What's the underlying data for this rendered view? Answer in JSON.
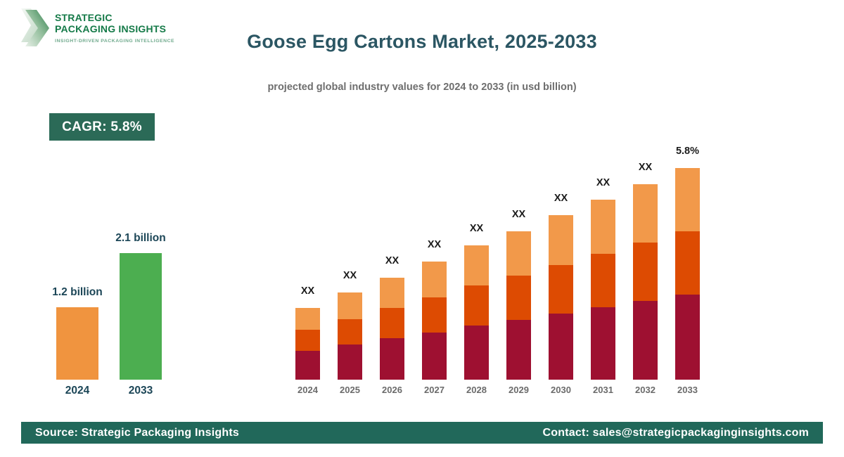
{
  "brand": {
    "name_line1": "STRATEGIC",
    "name_line2": "PACKAGING INSIGHTS",
    "tagline": "INSIGHT-DRIVEN PACKAGING INTELLIGENCE"
  },
  "header": {
    "title": "Goose Egg Cartons Market, 2025-2033",
    "subtitle": "projected global industry values for 2024 to 2033 (in usd billion)"
  },
  "cagr_badge": {
    "label": "CAGR: 5.8%"
  },
  "footer": {
    "source": "Source: Strategic Packaging Insights",
    "contact": "Contact: sales@strategicpackaginginsights.com"
  },
  "colors": {
    "title_teal": "#2B5663",
    "subtitle_gray": "#6E6E6E",
    "badge_green": "#2B6A57",
    "footer_green": "#21685A",
    "logo_green": "#157A48",
    "logo_tagline_green": "#6FA98C",
    "mini_label_teal": "#1C4657",
    "axis_label_gray": "#6B6B6B",
    "bar_label_black": "#1B1B1B",
    "stack_bottom_maroon": "#9E1031",
    "stack_middle_orange": "#DD4B02",
    "stack_top_orange": "#F2994A",
    "mini_orange": "#F0943F",
    "mini_green": "#4CAE50"
  },
  "chart_data": [
    {
      "id": "summary-comparison",
      "type": "bar",
      "categories": [
        "2024",
        "2033"
      ],
      "values": [
        1.2,
        2.1
      ],
      "value_labels": [
        "1.2 billion",
        "2.1 billion"
      ],
      "bar_colors": [
        "#F0943F",
        "#4CAE50"
      ],
      "unit": "usd billion",
      "ylim": [
        0,
        2.3
      ],
      "grid": false,
      "legend": false
    },
    {
      "id": "yearly-stacked",
      "type": "bar",
      "stacked": true,
      "categories": [
        "2024",
        "2025",
        "2026",
        "2027",
        "2028",
        "2029",
        "2030",
        "2031",
        "2032",
        "2033"
      ],
      "series": [
        {
          "name": "segment-bottom",
          "color": "#9E1031",
          "values": [
            41,
            50,
            59,
            67,
            77,
            85,
            94,
            103,
            112,
            121
          ]
        },
        {
          "name": "segment-middle",
          "color": "#DD4B02",
          "values": [
            30,
            36,
            43,
            50,
            57,
            63,
            69,
            76,
            83,
            90
          ]
        },
        {
          "name": "segment-top",
          "color": "#F2994A",
          "values": [
            31,
            38,
            43,
            51,
            57,
            63,
            71,
            77,
            83,
            90
          ]
        }
      ],
      "totals_relative": [
        102,
        124,
        145,
        168,
        191,
        211,
        234,
        256,
        278,
        301
      ],
      "bar_labels": [
        "XX",
        "XX",
        "XX",
        "XX",
        "XX",
        "XX",
        "XX",
        "XX",
        "XX",
        "5.8%"
      ],
      "value_axis": "hidden",
      "units_hint": "relative height units (numeric values shown as XX on chart)",
      "grid": false,
      "legend": false
    }
  ]
}
